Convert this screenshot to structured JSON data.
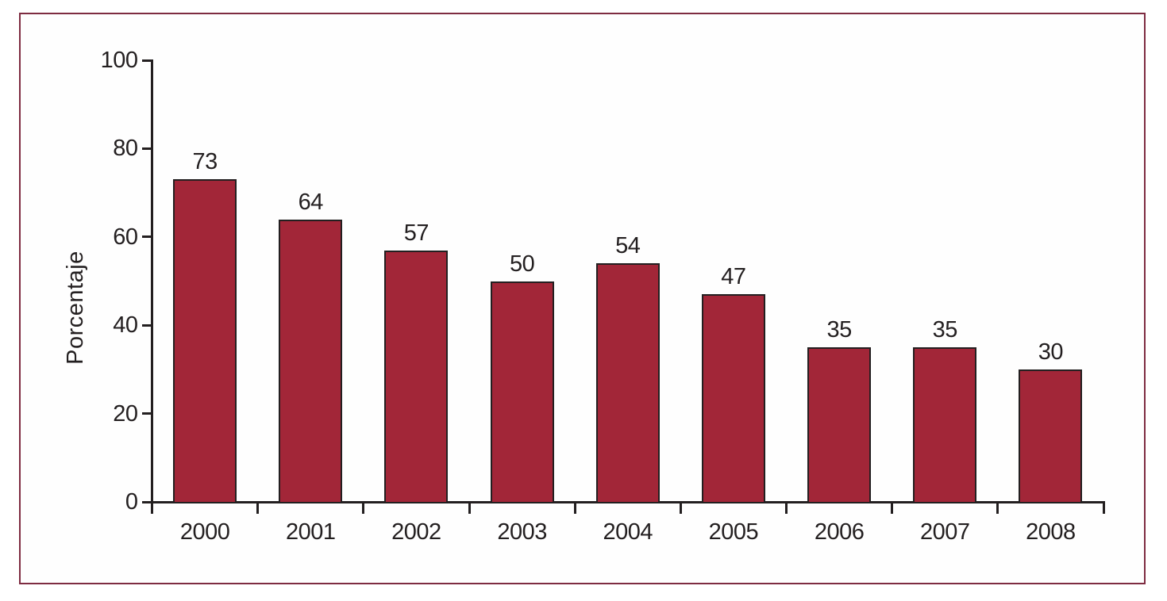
{
  "chart_data": {
    "type": "bar",
    "categories": [
      "2000",
      "2001",
      "2002",
      "2003",
      "2004",
      "2005",
      "2006",
      "2007",
      "2008"
    ],
    "values": [
      73,
      64,
      57,
      50,
      54,
      47,
      35,
      35,
      30
    ],
    "data_labels": [
      "73",
      "64",
      "57",
      "50",
      "54",
      "47",
      "35",
      "35",
      "30"
    ],
    "xlabel": "",
    "ylabel": "Porcentaje",
    "ylim": [
      0,
      100
    ],
    "yticks": [
      0,
      20,
      40,
      60,
      80,
      100
    ],
    "grid": "off",
    "legend": "none",
    "colors": {
      "bar_fill": "#a22638",
      "bar_border": "#231f20",
      "axis": "#231f20",
      "text": "#231f20",
      "frame_border": "#7e2c41",
      "background": "#ffffff"
    }
  }
}
